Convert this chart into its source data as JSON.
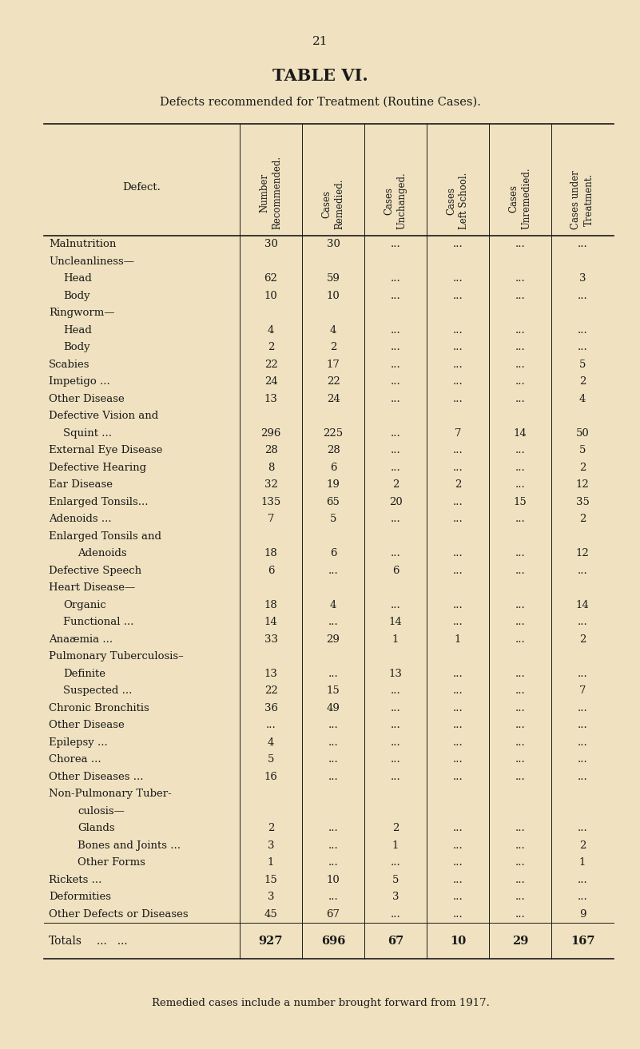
{
  "page_number": "21",
  "title": "TABLE VI.",
  "subtitle": "Defects recommended for Treatment (Routine Cases).",
  "bg_color": "#f0e2c0",
  "col_headers": [
    "Number\nRecommended.",
    "Cases\nRemedied.",
    "Cases\nUnchanged.",
    "Cases\nLeft School.",
    "Cases\nUnremedied.",
    "Cases under\nTreatment."
  ],
  "row_label_header": "Defect.",
  "rows": [
    {
      "label": "Malnutrition",
      "dots": "...   ...",
      "indent": 0,
      "vals": [
        "30",
        "30",
        "...",
        "...",
        "...",
        "..."
      ]
    },
    {
      "label": "Uncleanliness—",
      "dots": "",
      "indent": 0,
      "vals": [
        "",
        "",
        "",
        "",
        "",
        ""
      ],
      "section": true
    },
    {
      "label": "Head",
      "dots": "...   ...",
      "indent": 1,
      "vals": [
        "62",
        "59",
        "...",
        "...",
        "...",
        "3"
      ]
    },
    {
      "label": "Body",
      "dots": "...   ...",
      "indent": 1,
      "vals": [
        "10",
        "10",
        "...",
        "...",
        "...",
        "..."
      ]
    },
    {
      "label": "Ringworm—",
      "dots": "",
      "indent": 0,
      "vals": [
        "",
        "",
        "",
        "",
        "",
        ""
      ],
      "section": true
    },
    {
      "label": "Head",
      "dots": "...   ...",
      "indent": 1,
      "vals": [
        "4",
        "4",
        "...",
        "...",
        "...",
        "..."
      ]
    },
    {
      "label": "Body",
      "dots": "...   ...",
      "indent": 1,
      "vals": [
        "2",
        "2",
        "...",
        "...",
        "...",
        "..."
      ]
    },
    {
      "label": "Scabies",
      "dots": "...   ...   ...",
      "indent": 0,
      "vals": [
        "22",
        "17",
        "...",
        "...",
        "...",
        "5"
      ]
    },
    {
      "label": "Impetigo ...",
      "dots": "...   ...",
      "indent": 0,
      "vals": [
        "24",
        "22",
        "...",
        "...",
        "...",
        "2"
      ]
    },
    {
      "label": "Other Disease",
      "dots": "...   ...",
      "indent": 0,
      "vals": [
        "13",
        "24",
        "...",
        "...",
        "...",
        "4"
      ]
    },
    {
      "label": "Defective Vision and",
      "dots": "",
      "indent": 0,
      "vals": [
        "",
        "",
        "",
        "",
        "",
        ""
      ],
      "section": true
    },
    {
      "label": "Squint ...",
      "dots": "...",
      "indent": 1,
      "vals": [
        "296",
        "225",
        "...",
        "7",
        "14",
        "50"
      ]
    },
    {
      "label": "External Eye Disease",
      "dots": "...",
      "indent": 0,
      "vals": [
        "28",
        "28",
        "...",
        "...",
        "...",
        "5"
      ]
    },
    {
      "label": "Defective Hearing",
      "dots": "...",
      "indent": 0,
      "vals": [
        "8",
        "6",
        "...",
        "...",
        "...",
        "2"
      ]
    },
    {
      "label": "Ear Disease",
      "dots": "...   ...",
      "indent": 0,
      "vals": [
        "32",
        "19",
        "2",
        "2",
        "...",
        "12"
      ]
    },
    {
      "label": "Enlarged Tonsils...",
      "dots": "...",
      "indent": 0,
      "vals": [
        "135",
        "65",
        "20",
        "...",
        "15",
        "35"
      ]
    },
    {
      "label": "Adenoids ...",
      "dots": "...   ...",
      "indent": 0,
      "vals": [
        "7",
        "5",
        "...",
        "...",
        "...",
        "2"
      ]
    },
    {
      "label": "Enlarged Tonsils and",
      "dots": "",
      "indent": 0,
      "vals": [
        "",
        "",
        "",
        "",
        "",
        ""
      ],
      "section": true
    },
    {
      "label": "Adenoids",
      "dots": "...",
      "indent": 2,
      "vals": [
        "18",
        "6",
        "...",
        "...",
        "...",
        "12"
      ]
    },
    {
      "label": "Defective Speech",
      "dots": "...",
      "indent": 0,
      "vals": [
        "6",
        "...",
        "6",
        "...",
        "...",
        "..."
      ]
    },
    {
      "label": "Heart Disease—",
      "dots": "",
      "indent": 0,
      "vals": [
        "",
        "",
        "",
        "",
        "",
        ""
      ],
      "section": true
    },
    {
      "label": "Organic",
      "dots": "...   ...",
      "indent": 1,
      "vals": [
        "18",
        "4",
        "...",
        "...",
        "...",
        "14"
      ]
    },
    {
      "label": "Functional ...",
      "dots": "...",
      "indent": 1,
      "vals": [
        "14",
        "...",
        "14",
        "...",
        "...",
        "..."
      ]
    },
    {
      "label": "Anaæmia ...",
      "dots": "...   ...",
      "indent": 0,
      "vals": [
        "33",
        "29",
        "1",
        "1",
        "...",
        "2"
      ]
    },
    {
      "label": "Pulmonary Tuberculosis–",
      "dots": "",
      "indent": 0,
      "vals": [
        "",
        "",
        "",
        "",
        "",
        ""
      ],
      "section": true
    },
    {
      "label": "Definite",
      "dots": "...   ...",
      "indent": 1,
      "vals": [
        "13",
        "...",
        "13",
        "...",
        "...",
        "..."
      ]
    },
    {
      "label": "Suspected ...",
      "dots": "...",
      "indent": 1,
      "vals": [
        "22",
        "15",
        "...",
        "...",
        "...",
        "7"
      ]
    },
    {
      "label": "Chronic Bronchitis",
      "dots": "...",
      "indent": 0,
      "vals": [
        "36",
        "49",
        "...",
        "...",
        "...",
        "..."
      ]
    },
    {
      "label": "Other Disease",
      "dots": "...   ...",
      "indent": 0,
      "vals": [
        "...",
        "...",
        "...",
        "...",
        "...",
        "..."
      ]
    },
    {
      "label": "Epilepsy ...",
      "dots": "...   ...",
      "indent": 0,
      "vals": [
        "4",
        "...",
        "...",
        "...",
        "...",
        "..."
      ]
    },
    {
      "label": "Chorea ...",
      "dots": "...   ...",
      "indent": 0,
      "vals": [
        "5",
        "...",
        "...",
        "...",
        "...",
        "..."
      ]
    },
    {
      "label": "Other Diseases ...",
      "dots": "...",
      "indent": 0,
      "vals": [
        "16",
        "...",
        "...",
        "...",
        "...",
        "..."
      ]
    },
    {
      "label": "Non-Pulmonary Tuber-",
      "dots": "",
      "indent": 0,
      "vals": [
        "",
        "",
        "",
        "",
        "",
        ""
      ],
      "section": true
    },
    {
      "label": "culosis—",
      "dots": "",
      "indent": 2,
      "vals": [
        "",
        "",
        "",
        "",
        "",
        ""
      ],
      "section": true
    },
    {
      "label": "Glands",
      "dots": "...   ...",
      "indent": 2,
      "vals": [
        "2",
        "...",
        "2",
        "...",
        "...",
        "..."
      ]
    },
    {
      "label": "Bones and Joints ...",
      "dots": "",
      "indent": 2,
      "vals": [
        "3",
        "...",
        "1",
        "...",
        "...",
        "2"
      ]
    },
    {
      "label": "Other Forms",
      "dots": "",
      "indent": 2,
      "vals": [
        "1",
        "...",
        "...",
        "...",
        "...",
        "1"
      ]
    },
    {
      "label": "Rickets ...",
      "dots": "...   ...",
      "indent": 0,
      "vals": [
        "15",
        "10",
        "5",
        "...",
        "...",
        "..."
      ]
    },
    {
      "label": "Deformities",
      "dots": "...   ...",
      "indent": 0,
      "vals": [
        "3",
        "...",
        "3",
        "...",
        "...",
        "..."
      ]
    },
    {
      "label": "Other Defects or Diseases",
      "dots": "",
      "indent": 0,
      "vals": [
        "45",
        "67",
        "...",
        "...",
        "...",
        "9"
      ]
    }
  ],
  "totals_row": {
    "label": "Totals",
    "dots": "...   ...",
    "vals": [
      "927",
      "696",
      "67",
      "10",
      "29",
      "167"
    ]
  },
  "footnote": "Remedied cases include a number brought forward from 1917."
}
